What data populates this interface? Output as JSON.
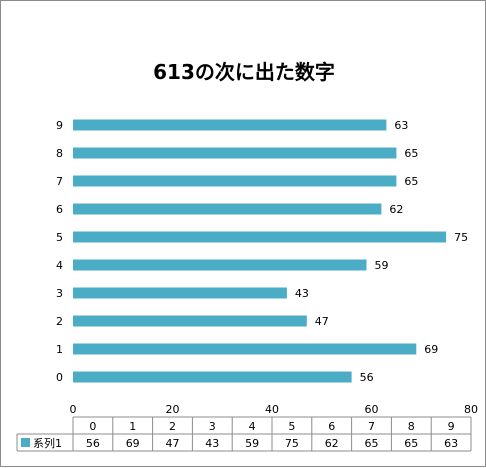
{
  "chart_data": {
    "type": "bar",
    "orientation": "horizontal",
    "title": "613の次に出た数字",
    "categories": [
      "0",
      "1",
      "2",
      "3",
      "4",
      "5",
      "6",
      "7",
      "8",
      "9"
    ],
    "series": [
      {
        "name": "系列1",
        "values": [
          56,
          69,
          47,
          43,
          59,
          75,
          62,
          65,
          65,
          63
        ]
      }
    ],
    "xlim": [
      0,
      80
    ],
    "x_ticks": [
      "0",
      "20",
      "40",
      "60",
      "80"
    ],
    "grid": false,
    "legend": "data-table",
    "bar_color": "#4bacc6",
    "show_data_labels": true,
    "data_table": true
  }
}
